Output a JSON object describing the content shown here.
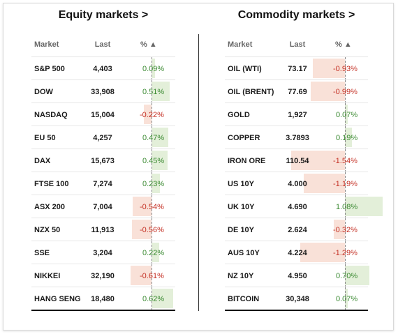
{
  "equity": {
    "title": "Equity markets >",
    "headers": {
      "market": "Market",
      "last": "Last",
      "pct": "% ▲"
    },
    "rows": [
      {
        "market": "S&P 500",
        "last": "4,403",
        "pct": "0.09%",
        "value": 0.09
      },
      {
        "market": "DOW",
        "last": "33,908",
        "pct": "0.51%",
        "value": 0.51
      },
      {
        "market": "NASDAQ",
        "last": "15,004",
        "pct": "-0.22%",
        "value": -0.22
      },
      {
        "market": "EU 50",
        "last": "4,257",
        "pct": "0.47%",
        "value": 0.47
      },
      {
        "market": "DAX",
        "last": "15,673",
        "pct": "0.45%",
        "value": 0.45
      },
      {
        "market": "FTSE 100",
        "last": "7,274",
        "pct": "0.23%",
        "value": 0.23
      },
      {
        "market": "ASX 200",
        "last": "7,004",
        "pct": "-0.54%",
        "value": -0.54
      },
      {
        "market": "NZX 50",
        "last": "11,913",
        "pct": "-0.56%",
        "value": -0.56
      },
      {
        "market": "SSE",
        "last": "3,204",
        "pct": "0.22%",
        "value": 0.22
      },
      {
        "market": "NIKKEI",
        "last": "32,190",
        "pct": "-0.61%",
        "value": -0.61
      },
      {
        "market": "HANG SENG",
        "last": "18,480",
        "pct": "0.62%",
        "value": 0.62
      }
    ]
  },
  "commodity": {
    "title": "Commodity markets >",
    "headers": {
      "market": "Market",
      "last": "Last",
      "pct": "% ▲"
    },
    "rows": [
      {
        "market": "OIL (WTI)",
        "last": "73.17",
        "pct": "-0.93%",
        "value": -0.93
      },
      {
        "market": "OIL (BRENT)",
        "last": "77.69",
        "pct": "-0.99%",
        "value": -0.99
      },
      {
        "market": "GOLD",
        "last": "1,927",
        "pct": "0.07%",
        "value": 0.07
      },
      {
        "market": "COPPER",
        "last": "3.7893",
        "pct": "0.19%",
        "value": 0.19
      },
      {
        "market": "IRON ORE",
        "last": "110.54",
        "pct": "-1.54%",
        "value": -1.54
      },
      {
        "market": "US 10Y",
        "last": "4.000",
        "pct": "-1.19%",
        "value": -1.19
      },
      {
        "market": "UK 10Y",
        "last": "4.690",
        "pct": "1.08%",
        "value": 1.08
      },
      {
        "market": "DE 10Y",
        "last": "2.624",
        "pct": "-0.32%",
        "value": -0.32
      },
      {
        "market": "AUS 10Y",
        "last": "4.224",
        "pct": "-1.29%",
        "value": -1.29
      },
      {
        "market": "NZ 10Y",
        "last": "4.950",
        "pct": "0.70%",
        "value": 0.7
      },
      {
        "market": "BITCOIN",
        "last": "30,348",
        "pct": "0.07%",
        "value": 0.07
      }
    ]
  },
  "colors": {
    "positive": "#3b8a32",
    "negative": "#c42f23",
    "positive_bar": "#e3efd9",
    "negative_bar": "#f9e1d8"
  }
}
